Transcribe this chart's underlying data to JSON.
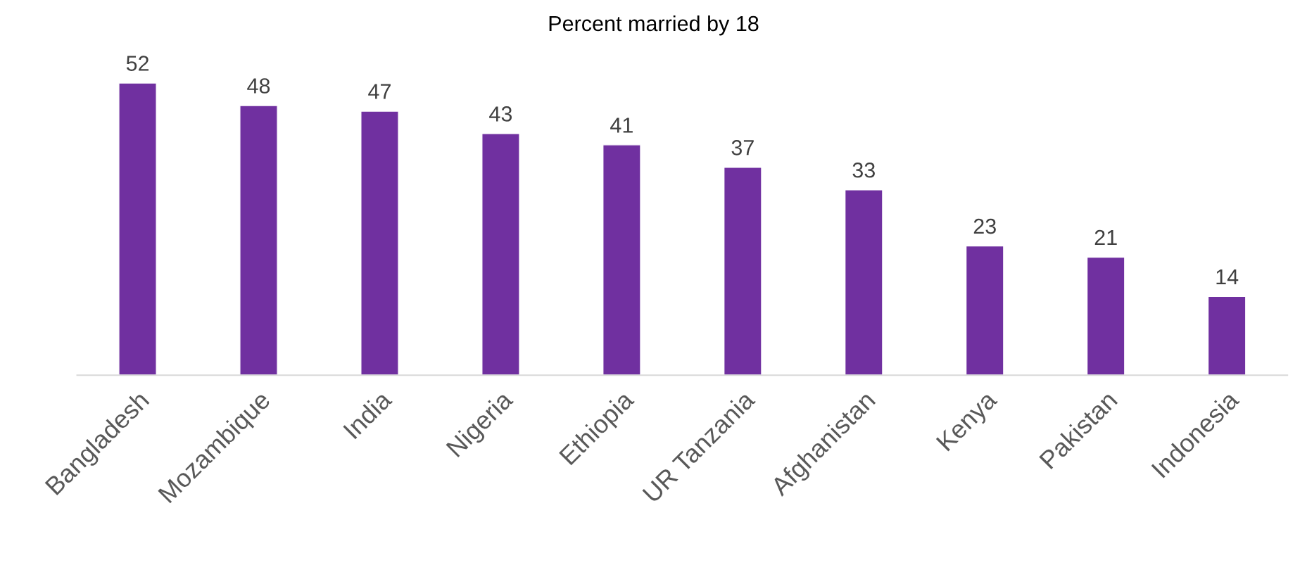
{
  "chart_data": {
    "type": "bar",
    "title": "Percent married by 18",
    "categories": [
      "Bangladesh",
      "Mozambique",
      "India",
      "Nigeria",
      "Ethiopia",
      "UR Tanzania",
      "Afghanistan",
      "Kenya",
      "Pakistan",
      "Indonesia"
    ],
    "values": [
      52,
      48,
      47,
      43,
      41,
      37,
      33,
      23,
      21,
      14
    ],
    "color": "#7030a0",
    "data_labels": true,
    "tick_labels": "x",
    "grid": false,
    "legend": false
  }
}
